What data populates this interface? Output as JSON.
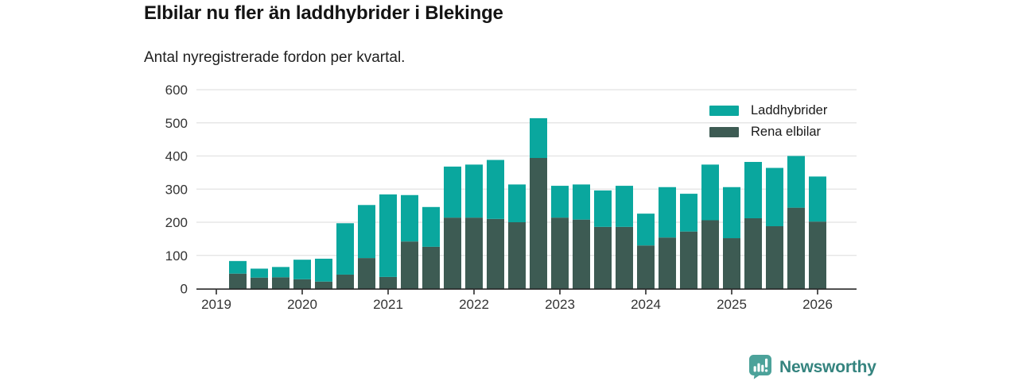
{
  "header": {
    "title": "Elbilar nu fler än laddhybrider i Blekinge",
    "subtitle": "Antal nyregistrerade fordon per kvartal."
  },
  "chart_data": {
    "type": "bar",
    "stacked": true,
    "title": "Elbilar nu fler än laddhybrider i Blekinge",
    "subtitle": "Antal nyregistrerade fordon per kvartal.",
    "xlabel": "",
    "ylabel": "",
    "ylim": [
      0,
      600
    ],
    "yticks": [
      0,
      100,
      200,
      300,
      400,
      500,
      600
    ],
    "xticks": [
      "2019",
      "2020",
      "2021",
      "2022",
      "2023",
      "2024",
      "2025",
      "2026"
    ],
    "grid": "horizontal",
    "legend_position": "top-right-inside",
    "stack_order_bottom_to_top": [
      "Rena elbilar",
      "Laddhybrider"
    ],
    "periods": [
      "2019-Q2",
      "2019-Q3",
      "2019-Q4",
      "2020-Q1",
      "2020-Q2",
      "2020-Q3",
      "2020-Q4",
      "2021-Q1",
      "2021-Q2",
      "2021-Q3",
      "2021-Q4",
      "2022-Q1",
      "2022-Q2",
      "2022-Q3",
      "2022-Q4",
      "2023-Q1",
      "2023-Q2",
      "2023-Q3",
      "2023-Q4",
      "2024-Q1",
      "2024-Q2",
      "2024-Q3",
      "2024-Q4",
      "2025-Q1",
      "2025-Q2",
      "2025-Q3",
      "2025-Q4",
      "2026-Q1"
    ],
    "series": [
      {
        "name": "Laddhybrider",
        "color": "#0aa79e",
        "values": [
          38,
          27,
          31,
          59,
          69,
          155,
          160,
          249,
          140,
          120,
          154,
          160,
          178,
          114,
          120,
          96,
          106,
          110,
          124,
          96,
          152,
          114,
          168,
          154,
          170,
          176,
          156,
          136
        ]
      },
      {
        "name": "Rena elbilar",
        "color": "#3d5b53",
        "values": [
          45,
          33,
          34,
          28,
          21,
          42,
          92,
          35,
          142,
          126,
          214,
          214,
          210,
          200,
          394,
          214,
          208,
          186,
          186,
          130,
          154,
          172,
          206,
          152,
          212,
          188,
          244,
          202
        ]
      }
    ],
    "colors": {
      "grid": "#e2e2e2",
      "axis": "#2b2b2b",
      "tick_label": "#333333"
    }
  },
  "footer": {
    "brand": "Newsworthy",
    "logo_color": "#4ca29a",
    "text_color": "#35847f"
  }
}
